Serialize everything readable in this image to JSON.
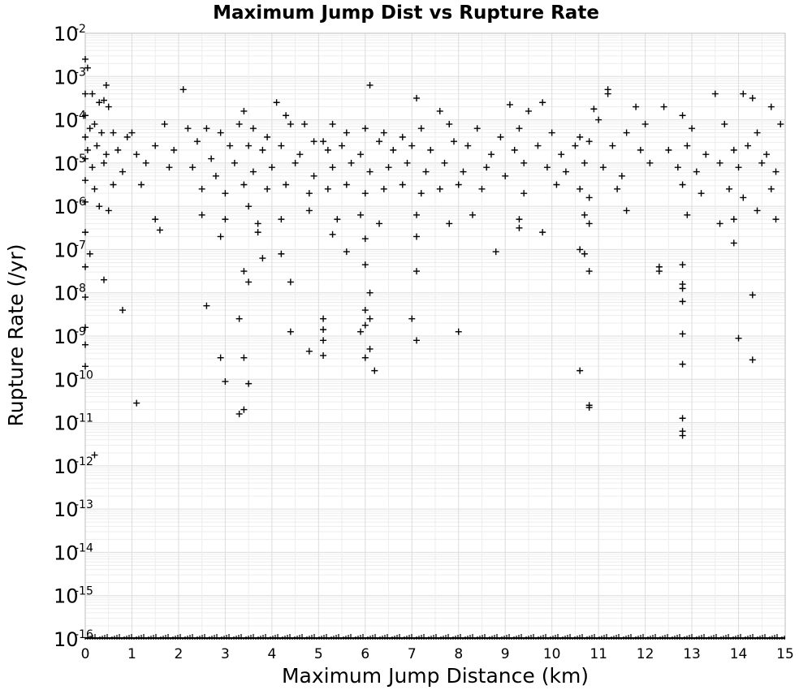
{
  "chart_data": {
    "type": "scatter",
    "title": "Maximum Jump Dist vs Rupture Rate",
    "xlabel": "Maximum Jump Distance (km)",
    "ylabel": "Rupture Rate (/yr)",
    "xlim": [
      0,
      15
    ],
    "ylim_log10": [
      -16,
      -2
    ],
    "yscale": "log",
    "grid": true,
    "marker": "plus",
    "color": "#000000",
    "x_ticks": [
      "0",
      "1",
      "2",
      "3",
      "4",
      "5",
      "6",
      "7",
      "8",
      "9",
      "10",
      "11",
      "12",
      "13",
      "14",
      "15"
    ],
    "y_ticks": [
      {
        "base": "10",
        "exp": "-16"
      },
      {
        "base": "10",
        "exp": "-15"
      },
      {
        "base": "10",
        "exp": "-14"
      },
      {
        "base": "10",
        "exp": "-13"
      },
      {
        "base": "10",
        "exp": "-12"
      },
      {
        "base": "10",
        "exp": "-11"
      },
      {
        "base": "10",
        "exp": "-10"
      },
      {
        "base": "10",
        "exp": "-9"
      },
      {
        "base": "10",
        "exp": "-8"
      },
      {
        "base": "10",
        "exp": "-7"
      },
      {
        "base": "10",
        "exp": "-6"
      },
      {
        "base": "10",
        "exp": "-5"
      },
      {
        "base": "10",
        "exp": "-4"
      },
      {
        "base": "10",
        "exp": "-3"
      },
      {
        "base": "10",
        "exp": "-2"
      }
    ],
    "series": [
      {
        "points_log10": [
          [
            0.05,
            -2.8
          ],
          [
            0.15,
            -3.4
          ],
          [
            0.3,
            -3.6
          ],
          [
            0.45,
            -3.2
          ],
          [
            2.1,
            -3.3
          ],
          [
            6.1,
            -3.2
          ],
          [
            11.2,
            -3.4
          ],
          [
            11.2,
            -3.3
          ],
          [
            0.4,
            -3.55
          ],
          [
            0.5,
            -3.7
          ],
          [
            3.4,
            -3.8
          ],
          [
            4.1,
            -3.6
          ],
          [
            4.3,
            -3.9
          ],
          [
            7.1,
            -3.5
          ],
          [
            7.6,
            -3.8
          ],
          [
            9.1,
            -3.65
          ],
          [
            9.5,
            -3.8
          ],
          [
            9.8,
            -3.6
          ],
          [
            10.9,
            -3.75
          ],
          [
            11.8,
            -3.7
          ],
          [
            12.4,
            -3.7
          ],
          [
            12.8,
            -3.9
          ],
          [
            13.5,
            -3.4
          ],
          [
            14.1,
            -3.4
          ],
          [
            14.3,
            -3.5
          ],
          [
            14.7,
            -3.7
          ],
          [
            0.1,
            -4.2
          ],
          [
            0.2,
            -4.1
          ],
          [
            0.35,
            -4.3
          ],
          [
            0.6,
            -4.3
          ],
          [
            0.9,
            -4.4
          ],
          [
            1.0,
            -4.3
          ],
          [
            1.7,
            -4.1
          ],
          [
            2.2,
            -4.2
          ],
          [
            2.6,
            -4.2
          ],
          [
            2.9,
            -4.3
          ],
          [
            3.3,
            -4.1
          ],
          [
            3.6,
            -4.2
          ],
          [
            3.9,
            -4.4
          ],
          [
            4.4,
            -4.1
          ],
          [
            4.7,
            -4.1
          ],
          [
            5.1,
            -4.5
          ],
          [
            5.3,
            -4.1
          ],
          [
            5.6,
            -4.3
          ],
          [
            6.0,
            -4.2
          ],
          [
            6.4,
            -4.3
          ],
          [
            6.8,
            -4.4
          ],
          [
            7.2,
            -4.2
          ],
          [
            7.8,
            -4.1
          ],
          [
            8.4,
            -4.2
          ],
          [
            8.9,
            -4.4
          ],
          [
            9.3,
            -4.2
          ],
          [
            10.0,
            -4.3
          ],
          [
            10.6,
            -4.4
          ],
          [
            11.0,
            -4.0
          ],
          [
            11.6,
            -4.3
          ],
          [
            12.0,
            -4.1
          ],
          [
            13.0,
            -4.2
          ],
          [
            13.7,
            -4.1
          ],
          [
            14.4,
            -4.3
          ],
          [
            14.9,
            -4.1
          ],
          [
            0.05,
            -4.7
          ],
          [
            0.25,
            -4.6
          ],
          [
            0.45,
            -4.8
          ],
          [
            0.7,
            -4.7
          ],
          [
            1.1,
            -4.8
          ],
          [
            1.5,
            -4.6
          ],
          [
            1.9,
            -4.7
          ],
          [
            2.4,
            -4.5
          ],
          [
            2.7,
            -4.9
          ],
          [
            3.1,
            -4.6
          ],
          [
            3.5,
            -4.6
          ],
          [
            3.8,
            -4.7
          ],
          [
            4.2,
            -4.6
          ],
          [
            4.6,
            -4.8
          ],
          [
            4.9,
            -4.5
          ],
          [
            5.2,
            -4.7
          ],
          [
            5.5,
            -4.6
          ],
          [
            5.9,
            -4.8
          ],
          [
            6.3,
            -4.5
          ],
          [
            6.6,
            -4.7
          ],
          [
            7.0,
            -4.6
          ],
          [
            7.4,
            -4.7
          ],
          [
            7.9,
            -4.5
          ],
          [
            8.2,
            -4.6
          ],
          [
            8.7,
            -4.8
          ],
          [
            9.2,
            -4.7
          ],
          [
            9.7,
            -4.6
          ],
          [
            10.2,
            -4.8
          ],
          [
            10.5,
            -4.6
          ],
          [
            10.8,
            -4.5
          ],
          [
            11.3,
            -4.6
          ],
          [
            11.9,
            -4.7
          ],
          [
            12.5,
            -4.7
          ],
          [
            12.9,
            -4.6
          ],
          [
            13.3,
            -4.8
          ],
          [
            13.9,
            -4.7
          ],
          [
            14.2,
            -4.6
          ],
          [
            14.6,
            -4.8
          ],
          [
            0.15,
            -5.1
          ],
          [
            0.4,
            -5.0
          ],
          [
            0.8,
            -5.2
          ],
          [
            1.3,
            -5.0
          ],
          [
            1.8,
            -5.1
          ],
          [
            2.3,
            -5.1
          ],
          [
            2.8,
            -5.3
          ],
          [
            3.2,
            -5.0
          ],
          [
            3.6,
            -5.2
          ],
          [
            4.0,
            -5.1
          ],
          [
            4.5,
            -5.0
          ],
          [
            4.9,
            -5.3
          ],
          [
            5.3,
            -5.1
          ],
          [
            5.7,
            -5.0
          ],
          [
            6.1,
            -5.2
          ],
          [
            6.5,
            -5.1
          ],
          [
            6.9,
            -5.0
          ],
          [
            7.3,
            -5.2
          ],
          [
            7.7,
            -5.0
          ],
          [
            8.1,
            -5.2
          ],
          [
            8.6,
            -5.1
          ],
          [
            9.0,
            -5.3
          ],
          [
            9.4,
            -5.0
          ],
          [
            9.9,
            -5.1
          ],
          [
            10.3,
            -5.2
          ],
          [
            10.7,
            -5.0
          ],
          [
            11.1,
            -5.1
          ],
          [
            11.5,
            -5.3
          ],
          [
            12.1,
            -5.0
          ],
          [
            12.7,
            -5.1
          ],
          [
            13.1,
            -5.2
          ],
          [
            13.6,
            -5.0
          ],
          [
            14.0,
            -5.1
          ],
          [
            14.5,
            -5.0
          ],
          [
            14.8,
            -5.2
          ],
          [
            0.2,
            -5.6
          ],
          [
            0.6,
            -5.5
          ],
          [
            1.2,
            -5.5
          ],
          [
            2.5,
            -5.6
          ],
          [
            3.0,
            -5.7
          ],
          [
            3.4,
            -5.5
          ],
          [
            3.9,
            -5.6
          ],
          [
            4.3,
            -5.5
          ],
          [
            4.8,
            -5.7
          ],
          [
            5.2,
            -5.6
          ],
          [
            5.6,
            -5.5
          ],
          [
            6.0,
            -5.7
          ],
          [
            6.4,
            -5.6
          ],
          [
            6.8,
            -5.5
          ],
          [
            7.2,
            -5.7
          ],
          [
            7.6,
            -5.6
          ],
          [
            8.0,
            -5.5
          ],
          [
            8.5,
            -5.6
          ],
          [
            9.4,
            -5.7
          ],
          [
            10.1,
            -5.5
          ],
          [
            10.6,
            -5.6
          ],
          [
            10.8,
            -5.8
          ],
          [
            11.4,
            -5.6
          ],
          [
            12.8,
            -5.5
          ],
          [
            13.2,
            -5.7
          ],
          [
            13.8,
            -5.6
          ],
          [
            14.1,
            -5.8
          ],
          [
            14.7,
            -5.6
          ],
          [
            0.3,
            -6.0
          ],
          [
            0.5,
            -6.1
          ],
          [
            1.5,
            -6.3
          ],
          [
            2.5,
            -6.2
          ],
          [
            3.0,
            -6.3
          ],
          [
            3.5,
            -6.0
          ],
          [
            3.7,
            -6.4
          ],
          [
            4.2,
            -6.3
          ],
          [
            4.8,
            -6.1
          ],
          [
            5.4,
            -6.3
          ],
          [
            5.9,
            -6.2
          ],
          [
            6.3,
            -6.4
          ],
          [
            7.1,
            -6.2
          ],
          [
            7.8,
            -6.4
          ],
          [
            8.3,
            -6.2
          ],
          [
            9.3,
            -6.3
          ],
          [
            9.3,
            -6.5
          ],
          [
            10.7,
            -6.2
          ],
          [
            10.8,
            -6.4
          ],
          [
            11.6,
            -6.1
          ],
          [
            12.9,
            -6.2
          ],
          [
            13.6,
            -6.4
          ],
          [
            13.9,
            -6.3
          ],
          [
            14.4,
            -6.1
          ],
          [
            14.8,
            -6.3
          ],
          [
            1.6,
            -6.55
          ],
          [
            2.9,
            -6.7
          ],
          [
            3.7,
            -6.6
          ],
          [
            5.3,
            -6.65
          ],
          [
            6.0,
            -6.75
          ],
          [
            7.1,
            -6.7
          ],
          [
            9.8,
            -6.6
          ],
          [
            13.9,
            -6.85
          ],
          [
            0.1,
            -7.1
          ],
          [
            3.8,
            -7.2
          ],
          [
            4.2,
            -7.1
          ],
          [
            5.6,
            -7.05
          ],
          [
            8.8,
            -7.05
          ],
          [
            10.6,
            -7.0
          ],
          [
            10.7,
            -7.1
          ],
          [
            12.3,
            -7.4
          ],
          [
            12.3,
            -7.5
          ],
          [
            3.4,
            -7.5
          ],
          [
            3.5,
            -7.75
          ],
          [
            6.0,
            -7.35
          ],
          [
            7.1,
            -7.5
          ],
          [
            10.8,
            -7.5
          ],
          [
            12.8,
            -7.35
          ],
          [
            0.4,
            -7.7
          ],
          [
            4.4,
            -7.75
          ],
          [
            12.8,
            -7.8
          ],
          [
            12.8,
            -7.9
          ],
          [
            6.1,
            -8.0
          ],
          [
            0.8,
            -8.4
          ],
          [
            2.6,
            -8.3
          ],
          [
            5.1,
            -8.6
          ],
          [
            6.0,
            -8.4
          ],
          [
            7.0,
            -8.6
          ],
          [
            12.8,
            -8.2
          ],
          [
            14.3,
            -8.05
          ],
          [
            3.3,
            -8.6
          ],
          [
            4.4,
            -8.9
          ],
          [
            5.1,
            -8.85
          ],
          [
            5.9,
            -8.9
          ],
          [
            6.0,
            -8.75
          ],
          [
            6.1,
            -8.6
          ],
          [
            8.0,
            -8.9
          ],
          [
            12.8,
            -8.95
          ],
          [
            5.1,
            -9.1
          ],
          [
            7.1,
            -9.1
          ],
          [
            14.0,
            -9.05
          ],
          [
            6.1,
            -9.3
          ],
          [
            4.8,
            -9.35
          ],
          [
            5.1,
            -9.45
          ],
          [
            2.9,
            -9.5
          ],
          [
            3.4,
            -9.5
          ],
          [
            6.0,
            -9.5
          ],
          [
            12.8,
            -9.65
          ],
          [
            14.3,
            -9.55
          ],
          [
            6.2,
            -9.8
          ],
          [
            10.6,
            -9.8
          ],
          [
            3.0,
            -10.05
          ],
          [
            3.5,
            -10.1
          ],
          [
            1.1,
            -10.55
          ],
          [
            3.4,
            -10.7
          ],
          [
            3.3,
            -10.8
          ],
          [
            10.8,
            -10.6
          ],
          [
            10.8,
            -10.65
          ],
          [
            12.8,
            -10.9
          ],
          [
            12.8,
            -11.2
          ],
          [
            12.8,
            -11.3
          ],
          [
            0.2,
            -11.75
          ],
          [
            0.0,
            -2.6
          ],
          [
            0.0,
            -3.4
          ],
          [
            0.0,
            -3.9
          ],
          [
            0.0,
            -4.4
          ],
          [
            0.0,
            -4.9
          ],
          [
            0.0,
            -5.4
          ],
          [
            0.0,
            -5.9
          ],
          [
            0.0,
            -6.6
          ],
          [
            0.0,
            -7.4
          ],
          [
            0.0,
            -8.1
          ],
          [
            0.0,
            -8.8
          ],
          [
            0.0,
            -9.2
          ],
          [
            0.0,
            -9.7
          ]
        ]
      }
    ],
    "floor_band_log10": -16
  }
}
